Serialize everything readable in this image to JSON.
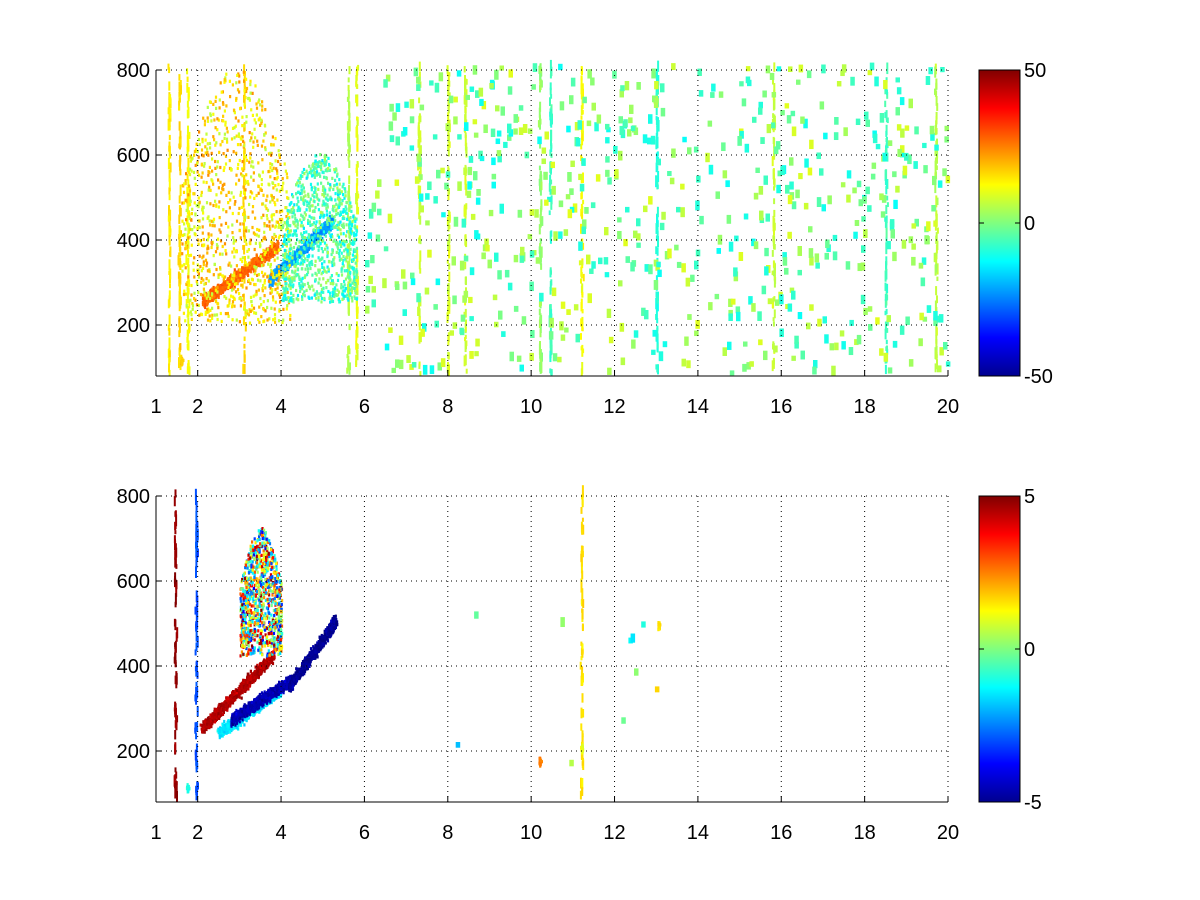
{
  "chart_data": [
    {
      "type": "heatmap",
      "title": "",
      "xlabel": "",
      "ylabel": "",
      "xlim": [
        1,
        20
      ],
      "ylim": [
        80,
        800
      ],
      "x_ticks": [
        1,
        2,
        4,
        6,
        8,
        10,
        12,
        14,
        16,
        18,
        20
      ],
      "y_ticks": [
        200,
        400,
        600,
        800
      ],
      "grid": true,
      "colormap": "jet",
      "background": "#ffffff",
      "clim": [
        -50,
        50
      ],
      "colorbar_ticks": [
        50,
        0,
        -50
      ],
      "features": [
        {
          "kind": "band",
          "x_start": 2.1,
          "y_start": 250,
          "x_end": 3.9,
          "y_end": 380,
          "value": 28
        },
        {
          "kind": "band",
          "x_start": 3.7,
          "y_start": 300,
          "x_end": 5.2,
          "y_end": 440,
          "value": -22
        },
        {
          "kind": "cloud",
          "x_min": 1.6,
          "x_max": 4.2,
          "y_min": 200,
          "y_max": 800,
          "value_min": 5,
          "value_max": 24
        },
        {
          "kind": "cloud",
          "x_min": 4.0,
          "x_max": 5.8,
          "y_min": 250,
          "y_max": 600,
          "value_min": -15,
          "value_max": 5
        },
        {
          "kind": "blob",
          "x": 1.6,
          "y": 110,
          "value": 18
        }
      ],
      "streaks": [
        {
          "x": 1.3,
          "value": 14
        },
        {
          "x": 1.55,
          "value": 16
        },
        {
          "x": 1.75,
          "value": 12
        },
        {
          "x": 3.1,
          "value": 16
        },
        {
          "x": 5.6,
          "value": 5
        },
        {
          "x": 5.8,
          "value": 10
        },
        {
          "x": 7.3,
          "value": 8
        },
        {
          "x": 8.0,
          "value": 9
        },
        {
          "x": 8.4,
          "value": 8
        },
        {
          "x": 10.2,
          "value": 2
        },
        {
          "x": 10.45,
          "value": -7
        },
        {
          "x": 11.2,
          "value": 12
        },
        {
          "x": 13.0,
          "value": -9
        },
        {
          "x": 15.8,
          "value": 7
        },
        {
          "x": 18.5,
          "value": -6
        },
        {
          "x": 19.7,
          "value": 6
        }
      ],
      "scatter": {
        "x_min": 6,
        "x_max": 20,
        "y_min": 80,
        "y_max": 800,
        "value_min": -12,
        "value_max": 10
      }
    },
    {
      "type": "heatmap",
      "title": "",
      "xlabel": "",
      "ylabel": "",
      "xlim": [
        1,
        20
      ],
      "ylim": [
        80,
        800
      ],
      "x_ticks": [
        1,
        2,
        4,
        6,
        8,
        10,
        12,
        14,
        16,
        18,
        20
      ],
      "y_ticks": [
        200,
        400,
        600,
        800
      ],
      "grid": true,
      "colormap": "jet",
      "background": "#ffffff",
      "clim": [
        -5,
        5
      ],
      "colorbar_ticks": [
        5,
        0,
        -5
      ],
      "features": [
        {
          "kind": "band",
          "x_start": 2.1,
          "y_start": 250,
          "x_end": 3.8,
          "y_end": 420,
          "value": 4.5
        },
        {
          "kind": "band",
          "x_start": 2.5,
          "y_start": 240,
          "x_end": 4.0,
          "y_end": 340,
          "value": -1.5
        },
        {
          "kind": "band",
          "x_start": 2.8,
          "y_start": 270,
          "x_end": 4.2,
          "y_end": 360,
          "value": -4.5
        },
        {
          "kind": "band",
          "x_start": 4.2,
          "y_start": 350,
          "x_end": 5.3,
          "y_end": 500,
          "value": -4.8
        },
        {
          "kind": "cloud",
          "x_min": 3.0,
          "x_max": 4.0,
          "y_min": 420,
          "y_max": 720,
          "value_min": -4,
          "value_max": 5
        },
        {
          "kind": "blob",
          "x": 1.75,
          "y": 110,
          "value": -1
        },
        {
          "kind": "blob",
          "x": 10.2,
          "y": 170,
          "value": 2.5
        },
        {
          "kind": "blob",
          "x": 11.2,
          "y": 200,
          "value": 1
        },
        {
          "kind": "blob",
          "x": 13.05,
          "y": 490,
          "value": 1.5
        }
      ],
      "streaks": [
        {
          "x": 1.45,
          "value": 4.8
        },
        {
          "x": 1.95,
          "value": -3
        },
        {
          "x": 11.2,
          "value": 1.5
        }
      ],
      "scatter": {
        "x_min": 8,
        "x_max": 14,
        "y_min": 150,
        "y_max": 550,
        "value_min": -2,
        "value_max": 2
      }
    }
  ]
}
